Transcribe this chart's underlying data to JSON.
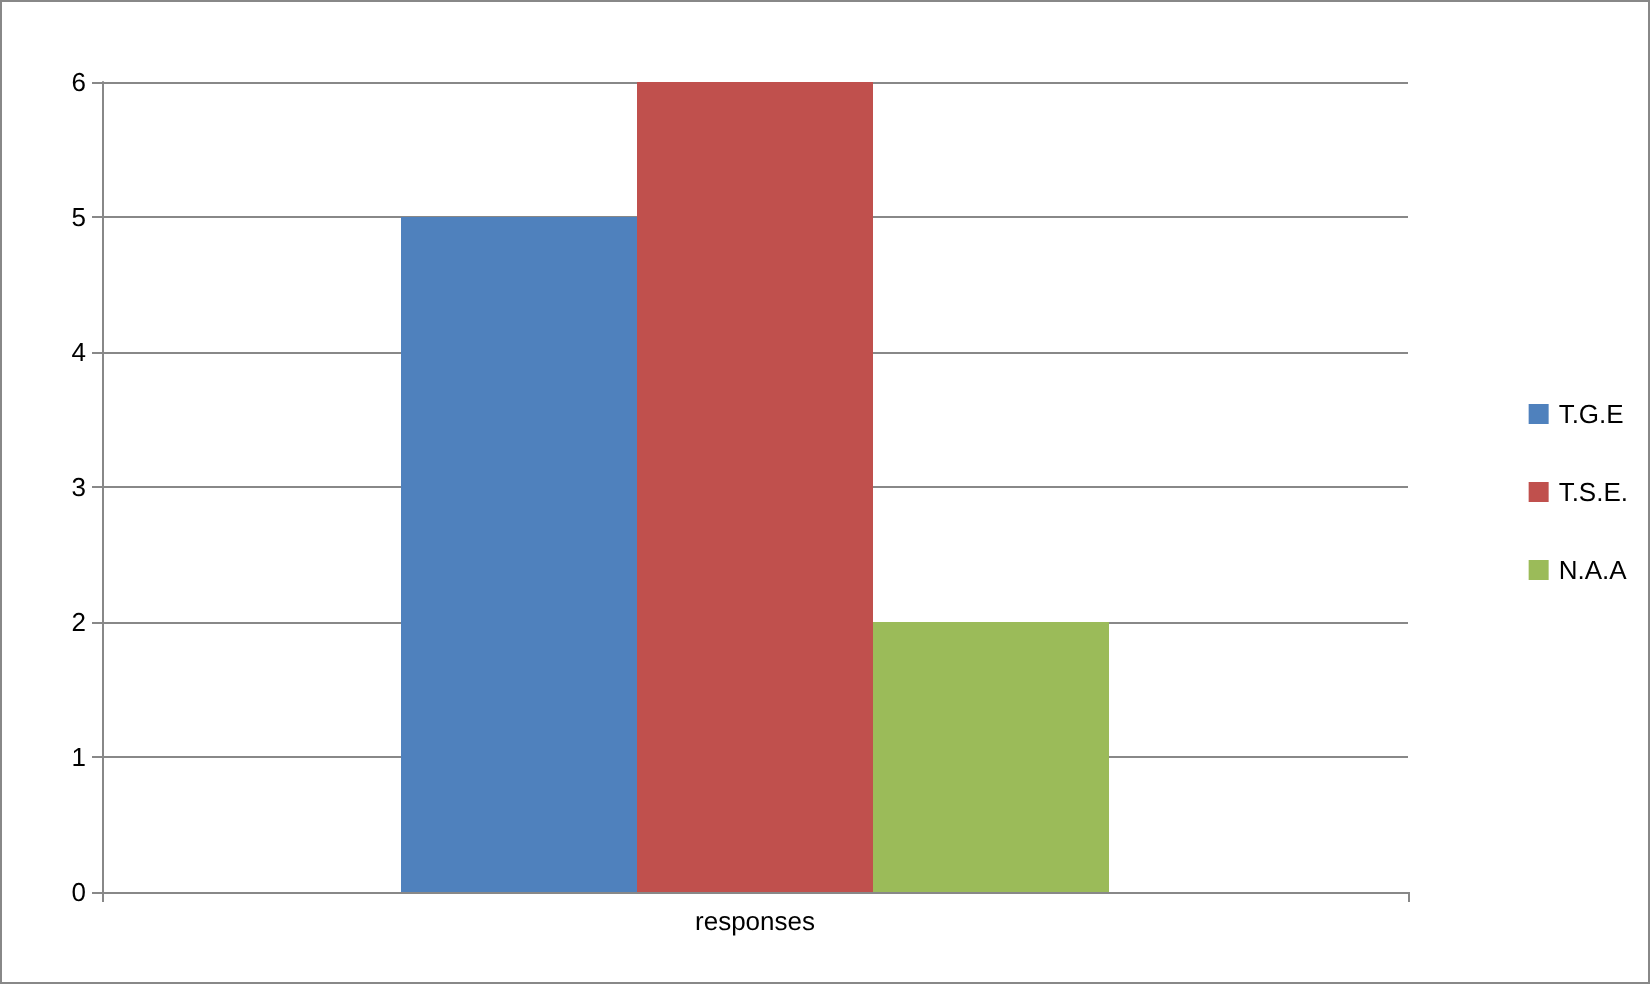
{
  "chart_data": {
    "type": "bar",
    "categories": [
      "responses"
    ],
    "series": [
      {
        "name": "T.G.E",
        "color": "#4f81bd",
        "values": [
          5
        ]
      },
      {
        "name": "T.S.E.",
        "color": "#c0504d",
        "values": [
          6
        ]
      },
      {
        "name": "N.A.A",
        "color": "#9bbb59",
        "values": [
          2
        ]
      }
    ],
    "ylim": [
      0,
      6
    ],
    "yticks": [
      0,
      1,
      2,
      3,
      4,
      5,
      6
    ],
    "grid": "y",
    "legend": "right"
  }
}
